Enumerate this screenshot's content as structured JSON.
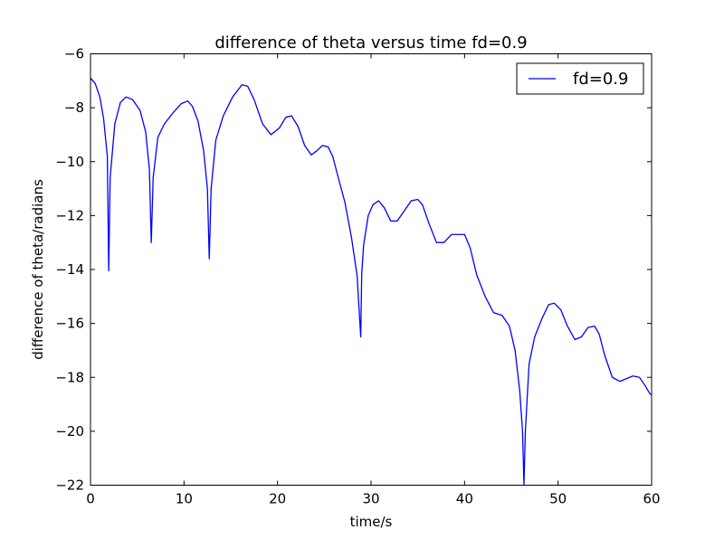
{
  "chart_data": {
    "type": "line",
    "title": "difference of theta versus time  fd=0.9",
    "xlabel": "time/s",
    "ylabel": "difference of theta/radians",
    "xlim": [
      0,
      60
    ],
    "ylim": [
      -22,
      -6
    ],
    "xticks": [
      0,
      10,
      20,
      30,
      40,
      50,
      60
    ],
    "xtick_labels": [
      "0",
      "10",
      "20",
      "30",
      "40",
      "50",
      "60"
    ],
    "yticks": [
      -22,
      -20,
      -18,
      -16,
      -14,
      -12,
      -10,
      -8,
      -6
    ],
    "ytick_labels": [
      "−22",
      "−20",
      "−18",
      "−16",
      "−14",
      "−12",
      "−10",
      "−8",
      "−6"
    ],
    "grid": false,
    "legend": {
      "location": "upper right",
      "entries": [
        "fd=0.9"
      ]
    },
    "series": [
      {
        "name": "fd=0.9",
        "color": "#0000ff",
        "x": [
          0,
          0.5,
          1.0,
          1.4,
          1.8,
          1.95,
          2.1,
          2.6,
          3.2,
          3.8,
          4.5,
          5.3,
          5.9,
          6.3,
          6.5,
          6.7,
          7.2,
          7.9,
          8.8,
          9.7,
          10.4,
          10.9,
          11.5,
          12.1,
          12.5,
          12.7,
          12.9,
          13.4,
          14.2,
          15.2,
          16.2,
          16.8,
          17.5,
          18.4,
          19.3,
          20.2,
          20.9,
          21.5,
          22.2,
          22.9,
          23.6,
          24.2,
          24.8,
          25.4,
          25.9,
          26.5,
          27.2,
          27.9,
          28.5,
          28.9,
          29.0,
          29.2,
          29.7,
          30.2,
          30.8,
          31.4,
          32.1,
          32.8,
          33.5,
          34.3,
          35.0,
          35.5,
          36.2,
          37.0,
          37.8,
          38.6,
          39.3,
          40.0,
          40.6,
          41.3,
          42.2,
          43.1,
          44.0,
          44.8,
          45.4,
          45.9,
          46.2,
          46.35,
          46.5,
          46.9,
          47.5,
          48.3,
          49.0,
          49.6,
          50.3,
          51.0,
          51.8,
          52.5,
          53.2,
          53.9,
          54.4,
          55.0,
          55.8,
          56.6,
          57.3,
          58.0,
          58.7,
          59.3,
          59.8,
          60
        ],
        "y": [
          -6.9,
          -7.1,
          -7.6,
          -8.4,
          -9.8,
          -14.05,
          -10.6,
          -8.6,
          -7.8,
          -7.6,
          -7.7,
          -8.1,
          -8.9,
          -10.3,
          -13.0,
          -10.6,
          -9.1,
          -8.6,
          -8.2,
          -7.85,
          -7.75,
          -7.95,
          -8.5,
          -9.6,
          -11.0,
          -13.6,
          -11.0,
          -9.2,
          -8.3,
          -7.6,
          -7.15,
          -7.2,
          -7.7,
          -8.6,
          -9.0,
          -8.75,
          -8.35,
          -8.3,
          -8.7,
          -9.4,
          -9.75,
          -9.6,
          -9.4,
          -9.45,
          -9.8,
          -10.6,
          -11.5,
          -12.8,
          -14.2,
          -16.5,
          -14.2,
          -13.1,
          -12.0,
          -11.6,
          -11.45,
          -11.7,
          -12.2,
          -12.2,
          -11.85,
          -11.45,
          -11.4,
          -11.6,
          -12.3,
          -13.0,
          -13.0,
          -12.7,
          -12.7,
          -12.7,
          -13.2,
          -14.2,
          -15.0,
          -15.6,
          -15.7,
          -16.1,
          -17.0,
          -18.5,
          -20.0,
          -22.0,
          -20.0,
          -17.5,
          -16.5,
          -15.8,
          -15.3,
          -15.25,
          -15.5,
          -16.1,
          -16.6,
          -16.5,
          -16.15,
          -16.1,
          -16.4,
          -17.2,
          -18.0,
          -18.15,
          -18.05,
          -17.95,
          -18.0,
          -18.3,
          -18.6,
          -18.65
        ]
      }
    ]
  }
}
